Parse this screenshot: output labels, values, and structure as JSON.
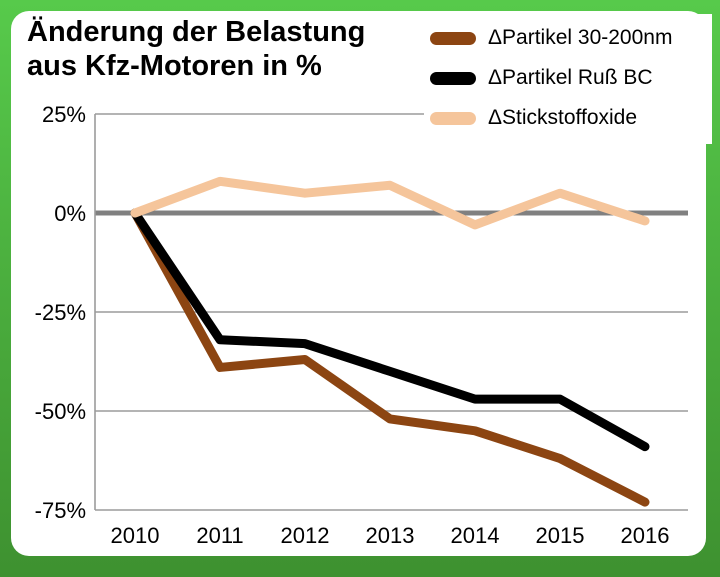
{
  "title": {
    "line1": "Änderung der Belastung",
    "line2": "aus Kfz-Motoren in %"
  },
  "legend": [
    {
      "label": "ΔPartikel 30-200nm",
      "color": "#8C4512"
    },
    {
      "label": "ΔPartikel Ruß BC",
      "color": "#000000"
    },
    {
      "label": "ΔStickstoffoxide",
      "color": "#F5C59B"
    }
  ],
  "frame": {
    "background_top": "#57CA4B",
    "background_bottom": "#3E9130",
    "panel_color": "#FFFFFF"
  },
  "chart_data": {
    "type": "line",
    "title": "Änderung der Belastung aus Kfz-Motoren in %",
    "x": [
      2010,
      2011,
      2012,
      2013,
      2014,
      2015,
      2016
    ],
    "x_tick_labels": [
      "2010",
      "2011",
      "2012",
      "2013",
      "2014",
      "2015",
      "2016"
    ],
    "y_ticks": [
      25,
      0,
      -25,
      -50,
      -75
    ],
    "y_tick_labels": [
      "25%",
      "0%",
      "-25%",
      "-50%",
      "-75%"
    ],
    "ylim": [
      -75,
      25
    ],
    "unit": "%",
    "grid": true,
    "legend_position": "top-right",
    "zero_line_color": "#808080",
    "grid_color": "#9B9B9B",
    "series": [
      {
        "name": "ΔPartikel 30-200nm",
        "color": "#8C4512",
        "values": [
          0,
          -39,
          -37,
          -52,
          -55,
          -62,
          -73
        ]
      },
      {
        "name": "ΔPartikel Ruß BC",
        "color": "#000000",
        "values": [
          0,
          -32,
          -33,
          -40,
          -47,
          -47,
          -59
        ]
      },
      {
        "name": "ΔStickstoffoxide",
        "color": "#F5C59B",
        "values": [
          0,
          8,
          5,
          7,
          -3,
          5,
          -2
        ]
      }
    ]
  }
}
